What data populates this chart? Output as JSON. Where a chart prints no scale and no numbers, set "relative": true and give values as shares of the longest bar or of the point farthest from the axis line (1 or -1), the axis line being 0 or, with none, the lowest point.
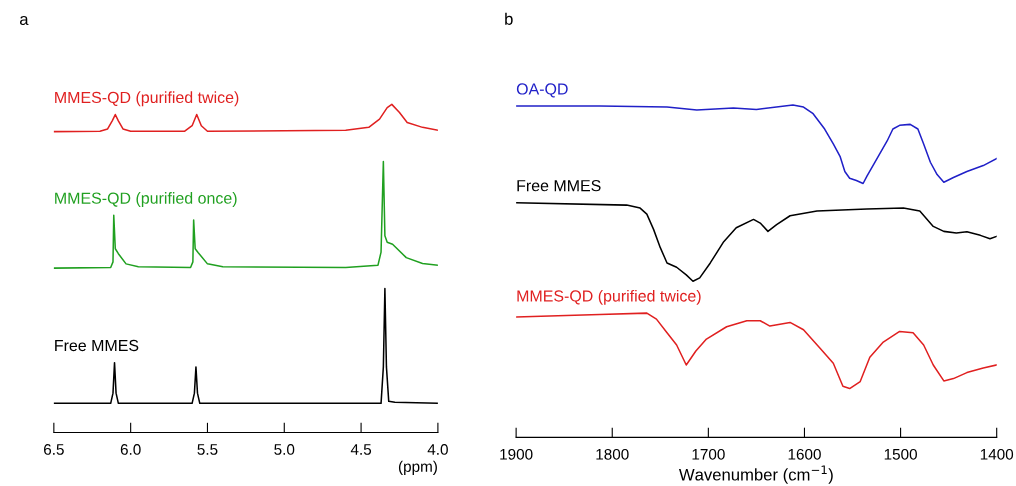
{
  "chart_data": [
    {
      "type": "line",
      "title": "a",
      "xlabel": "(ppm)",
      "relative": true,
      "legend": false,
      "grid": false,
      "xlim": [
        6.5,
        4.0
      ],
      "xticks": [
        6.5,
        {
          "value": 6.0,
          "label": "6.0"
        },
        5.5,
        {
          "value": 5.0,
          "label": "5.0"
        },
        4.5,
        {
          "value": 4.0,
          "label": "4.0"
        }
      ],
      "series": [
        {
          "name": "MMES-QD (purified twice)",
          "color": "#e02020",
          "x": [
            6.5,
            6.2,
            6.15,
            6.12,
            6.1,
            6.08,
            6.05,
            6.0,
            5.65,
            5.6,
            5.57,
            5.54,
            5.5,
            4.6,
            4.45,
            4.38,
            4.33,
            4.3,
            4.25,
            4.2,
            4.1,
            4.0
          ],
          "values": [
            0.917,
            0.918,
            0.925,
            0.95,
            0.969,
            0.95,
            0.925,
            0.918,
            0.918,
            0.935,
            0.969,
            0.935,
            0.918,
            0.921,
            0.93,
            0.955,
            0.99,
            1.0,
            0.975,
            0.945,
            0.93,
            0.921
          ]
        },
        {
          "name": "MMES-QD (purified once)",
          "color": "#20a020",
          "x": [
            6.5,
            6.13,
            6.115,
            6.11,
            6.1,
            6.08,
            6.03,
            5.95,
            5.61,
            5.595,
            5.59,
            5.58,
            5.56,
            5.5,
            5.4,
            4.6,
            4.39,
            4.37,
            4.355,
            4.345,
            4.33,
            4.295,
            4.206,
            4.1,
            4.0
          ],
          "values": [
            0.501,
            0.503,
            0.52,
            0.662,
            0.56,
            0.545,
            0.514,
            0.505,
            0.503,
            0.52,
            0.648,
            0.56,
            0.548,
            0.514,
            0.505,
            0.503,
            0.51,
            0.55,
            0.826,
            0.6,
            0.58,
            0.574,
            0.533,
            0.515,
            0.51
          ]
        },
        {
          "name": "Free MMES",
          "color": "#000000",
          "x": [
            6.5,
            6.13,
            6.115,
            6.105,
            6.095,
            6.08,
            5.6,
            5.585,
            5.575,
            5.565,
            5.55,
            4.37,
            4.355,
            4.345,
            4.335,
            4.32,
            4.28,
            4.0
          ],
          "values": [
            0.089,
            0.089,
            0.12,
            0.213,
            0.12,
            0.089,
            0.089,
            0.12,
            0.2,
            0.12,
            0.089,
            0.089,
            0.2,
            0.439,
            0.2,
            0.095,
            0.092,
            0.089
          ]
        }
      ]
    },
    {
      "type": "line",
      "title": "b",
      "xlabel": "Wavenumber (cm$^{−1}$)",
      "relative": true,
      "legend": false,
      "grid": false,
      "xlim": [
        1900,
        1400
      ],
      "xticks": [
        1900,
        1800,
        1700,
        1600,
        1500,
        1400
      ],
      "series": [
        {
          "name": "OA-QD",
          "color": "#2020c8",
          "x": [
            1900,
            1813,
            1743,
            1712,
            1674,
            1650,
            1612,
            1601,
            1591,
            1579,
            1570,
            1563,
            1558,
            1553,
            1546,
            1539,
            1535,
            1525,
            1514,
            1508,
            1501,
            1490,
            1482,
            1476,
            1469,
            1462,
            1455,
            1445,
            1431,
            1414,
            1400
          ],
          "values": [
            0.997,
            0.997,
            0.994,
            0.985,
            0.991,
            0.987,
            1.0,
            0.994,
            0.974,
            0.928,
            0.883,
            0.846,
            0.8,
            0.78,
            0.773,
            0.764,
            0.786,
            0.837,
            0.892,
            0.928,
            0.939,
            0.942,
            0.928,
            0.883,
            0.828,
            0.791,
            0.768,
            0.782,
            0.8,
            0.818,
            0.839
          ]
        },
        {
          "name": "Free MMES",
          "color": "#000000",
          "x": [
            1900,
            1785,
            1771,
            1764,
            1757,
            1750,
            1743,
            1733,
            1723,
            1716,
            1709,
            1698,
            1684,
            1671,
            1653,
            1646,
            1638,
            1629,
            1615,
            1587,
            1535,
            1497,
            1480,
            1466,
            1455,
            1442,
            1431,
            1417,
            1407,
            1400
          ],
          "values": [
            0.706,
            0.699,
            0.69,
            0.672,
            0.626,
            0.571,
            0.525,
            0.512,
            0.489,
            0.47,
            0.48,
            0.525,
            0.589,
            0.631,
            0.656,
            0.645,
            0.62,
            0.64,
            0.667,
            0.681,
            0.687,
            0.69,
            0.681,
            0.635,
            0.62,
            0.615,
            0.619,
            0.608,
            0.598,
            0.605
          ]
        },
        {
          "name": "MMES-QD (purified twice)",
          "color": "#e02020",
          "x": [
            1900,
            1813,
            1764,
            1754,
            1743,
            1733,
            1723,
            1713,
            1702,
            1681,
            1660,
            1646,
            1636,
            1615,
            1601,
            1584,
            1570,
            1560,
            1553,
            1542,
            1532,
            1518,
            1501,
            1487,
            1476,
            1466,
            1455,
            1445,
            1431,
            1414,
            1400
          ],
          "values": [
            0.362,
            0.37,
            0.374,
            0.356,
            0.315,
            0.278,
            0.218,
            0.26,
            0.296,
            0.333,
            0.351,
            0.351,
            0.335,
            0.346,
            0.324,
            0.269,
            0.223,
            0.154,
            0.147,
            0.168,
            0.241,
            0.287,
            0.319,
            0.315,
            0.278,
            0.218,
            0.17,
            0.177,
            0.195,
            0.209,
            0.218
          ]
        }
      ]
    }
  ]
}
